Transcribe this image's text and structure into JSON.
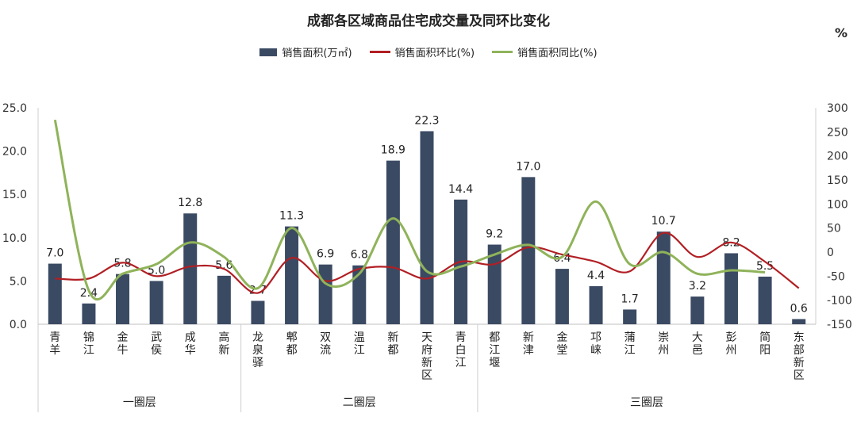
{
  "title": "成都各区域商品住宅成交量及同环比变化",
  "right_axis_unit": "%",
  "legend": [
    {
      "label": "销售面积(万㎡)",
      "kind": "bar",
      "color": "#3b4a63"
    },
    {
      "label": "销售面积环比(%)",
      "kind": "line",
      "color": "#b11f24"
    },
    {
      "label": "销售面积同比(%)",
      "kind": "line",
      "color": "#8fb35a"
    }
  ],
  "chart_data": {
    "type": "bar",
    "title": "成都各区域商品住宅成交量及同环比变化",
    "categories": [
      "青羊",
      "锦江",
      "金牛",
      "武侯",
      "成华",
      "高新",
      "龙泉驿",
      "郫都",
      "双流",
      "温江",
      "新都",
      "天府新区",
      "青白江",
      "都江堰",
      "新津",
      "金堂",
      "邛崃",
      "蒲江",
      "崇州",
      "大邑",
      "彭州",
      "简阳",
      "东部新区"
    ],
    "category_labels": [
      [
        "青",
        "羊"
      ],
      [
        "锦",
        "江"
      ],
      [
        "金",
        "牛"
      ],
      [
        "武",
        "侯"
      ],
      [
        "成",
        "华"
      ],
      [
        "高",
        "新"
      ],
      [
        "龙",
        "泉",
        "驿"
      ],
      [
        "郫",
        "都"
      ],
      [
        "双",
        "流"
      ],
      [
        "温",
        "江"
      ],
      [
        "新",
        "都"
      ],
      [
        "天",
        "府",
        "新",
        "区"
      ],
      [
        "青",
        "白",
        "江"
      ],
      [
        "都",
        "江",
        "堰"
      ],
      [
        "新",
        "津"
      ],
      [
        "金",
        "堂"
      ],
      [
        "邛",
        "崃"
      ],
      [
        "蒲",
        "江"
      ],
      [
        "崇",
        "州"
      ],
      [
        "大",
        "邑"
      ],
      [
        "彭",
        "州"
      ],
      [
        "简",
        "阳"
      ],
      [
        "东",
        "部",
        "新",
        "区"
      ]
    ],
    "groups": [
      {
        "label": "一圈层",
        "start": 0,
        "end": 5
      },
      {
        "label": "二圈层",
        "start": 6,
        "end": 12
      },
      {
        "label": "三圈层",
        "start": 13,
        "end": 22
      }
    ],
    "series": [
      {
        "name": "销售面积(万㎡)",
        "type": "bar",
        "axis": "left",
        "color": "#3b4a63",
        "values": [
          7.0,
          2.4,
          5.8,
          5.0,
          12.8,
          5.6,
          2.7,
          11.3,
          6.9,
          6.8,
          18.9,
          22.3,
          14.4,
          9.2,
          17.0,
          6.4,
          4.4,
          1.7,
          10.7,
          3.2,
          8.2,
          5.5,
          0.6
        ],
        "labels": [
          "7.0",
          "2.4",
          "5.8",
          "5.0",
          "12.8",
          "5.6",
          "2.7",
          "11.3",
          "6.9",
          "6.8",
          "18.9",
          "22.3",
          "14.4",
          "9.2",
          "17.0",
          "6.4",
          "4.4",
          "1.7",
          "10.7",
          "3.2",
          "8.2",
          "5.5",
          "0.6"
        ]
      },
      {
        "name": "销售面积环比(%)",
        "type": "line",
        "axis": "right",
        "color": "#b11f24",
        "values": [
          -55,
          -55,
          -22,
          -50,
          -30,
          -35,
          -85,
          -12,
          -60,
          -35,
          -32,
          -55,
          -20,
          -25,
          10,
          -5,
          -20,
          -40,
          40,
          -10,
          20,
          -20,
          -75
        ]
      },
      {
        "name": "销售面积同比(%)",
        "type": "line",
        "axis": "right",
        "color": "#8fb35a",
        "values": [
          275,
          -80,
          -45,
          -25,
          20,
          -10,
          -75,
          50,
          -65,
          -45,
          70,
          -40,
          -30,
          -5,
          15,
          -10,
          105,
          -25,
          0,
          -45,
          -38,
          -42,
          null
        ]
      }
    ],
    "y_left": {
      "ylim": [
        0,
        25
      ],
      "ticks": [
        "0.0",
        "5.0",
        "10.0",
        "15.0",
        "20.0",
        "25.0"
      ]
    },
    "y_right": {
      "ylim": [
        -150,
        300
      ],
      "ticks": [
        "-150",
        "-100",
        "-50",
        "0",
        "50",
        "100",
        "150",
        "200",
        "250",
        "300"
      ]
    },
    "grid": false,
    "legend_position": "top"
  }
}
